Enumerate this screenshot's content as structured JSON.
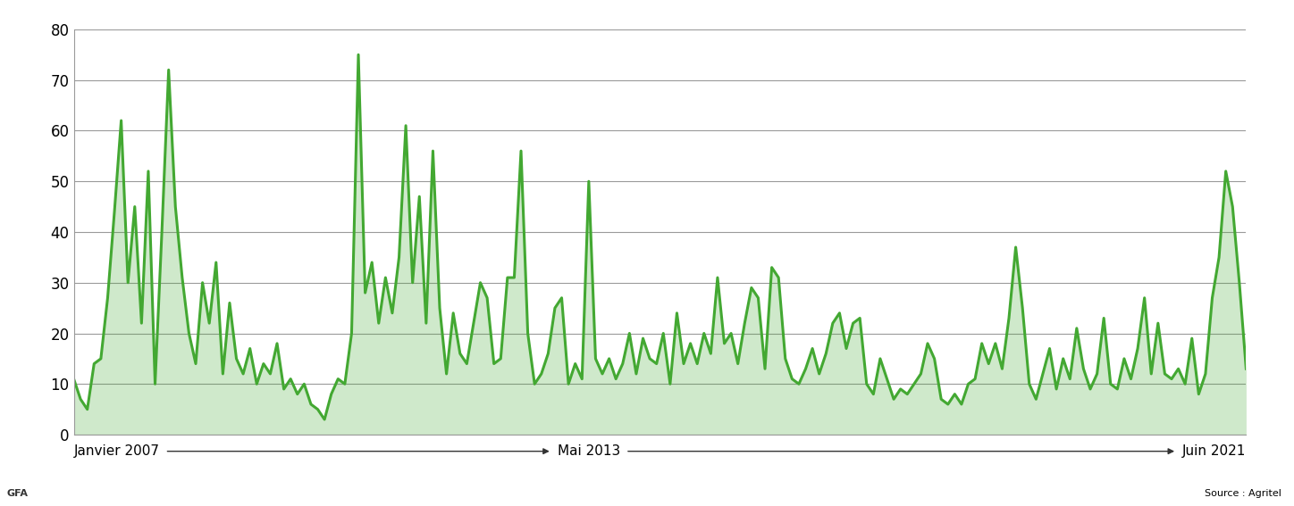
{
  "chart_data": {
    "type": "area",
    "categories": [
      "Janvier 2007",
      null,
      null,
      null,
      null,
      null,
      null,
      null,
      null,
      null,
      null,
      null,
      null,
      null,
      null,
      null,
      null,
      null,
      null,
      null,
      null,
      null,
      null,
      null,
      null,
      null,
      null,
      null,
      null,
      null,
      null,
      null,
      null,
      null,
      null,
      null,
      null,
      null,
      null,
      null,
      null,
      null,
      null,
      null,
      null,
      null,
      null,
      null,
      null,
      null,
      null,
      null,
      null,
      null,
      null,
      null,
      null,
      null,
      null,
      null,
      null,
      null,
      null,
      null,
      null,
      null,
      null,
      null,
      null,
      null,
      null,
      null,
      null,
      null,
      null,
      null,
      "Mai 2013",
      null,
      null,
      null,
      null,
      null,
      null,
      null,
      null,
      null,
      null,
      null,
      null,
      null,
      null,
      null,
      null,
      null,
      null,
      null,
      null,
      null,
      null,
      null,
      null,
      null,
      null,
      null,
      null,
      null,
      null,
      null,
      null,
      null,
      null,
      null,
      null,
      null,
      null,
      null,
      null,
      null,
      null,
      null,
      null,
      null,
      null,
      null,
      null,
      null,
      null,
      null,
      null,
      null,
      null,
      null,
      null,
      null,
      null,
      null,
      null,
      null,
      null,
      null,
      null,
      null,
      null,
      null,
      null,
      null,
      null,
      null,
      null,
      null,
      null,
      null,
      null,
      null,
      null,
      null,
      null,
      null,
      null,
      null,
      null,
      null,
      null,
      null,
      null,
      null,
      null,
      null,
      null,
      null,
      null,
      null,
      null,
      "Juin 2021"
    ],
    "values": [
      11,
      7,
      5,
      14,
      15,
      27,
      44,
      62,
      30,
      45,
      22,
      52,
      10,
      40,
      72,
      45,
      31,
      20,
      14,
      30,
      22,
      34,
      12,
      26,
      15,
      12,
      17,
      10,
      14,
      12,
      18,
      9,
      11,
      8,
      10,
      6,
      5,
      3,
      8,
      11,
      10,
      20,
      75,
      28,
      34,
      22,
      31,
      24,
      35,
      61,
      30,
      47,
      22,
      56,
      25,
      12,
      24,
      16,
      14,
      22,
      30,
      27,
      14,
      15,
      31,
      31,
      56,
      20,
      10,
      12,
      16,
      25,
      27,
      10,
      14,
      11,
      50,
      15,
      12,
      15,
      11,
      14,
      20,
      12,
      19,
      15,
      14,
      20,
      10,
      24,
      14,
      18,
      14,
      20,
      16,
      31,
      18,
      20,
      14,
      22,
      29,
      27,
      13,
      33,
      31,
      15,
      11,
      10,
      13,
      17,
      12,
      16,
      22,
      24,
      17,
      22,
      23,
      10,
      8,
      15,
      11,
      7,
      9,
      8,
      10,
      12,
      18,
      15,
      7,
      6,
      8,
      6,
      10,
      11,
      18,
      14,
      18,
      13,
      23,
      37,
      25,
      10,
      7,
      12,
      17,
      9,
      15,
      11,
      21,
      13,
      9,
      12,
      23,
      10,
      9,
      15,
      11,
      17,
      27,
      12,
      22,
      12,
      11,
      13,
      10,
      19,
      8,
      12,
      27,
      35,
      52,
      45,
      30,
      13
    ],
    "color": "#43a832",
    "ylim": [
      0,
      80
    ],
    "yticks": [
      0,
      10,
      20,
      30,
      40,
      50,
      60,
      70,
      80
    ],
    "grid": true,
    "source": "Source : Agritel",
    "credit": "GFA"
  }
}
